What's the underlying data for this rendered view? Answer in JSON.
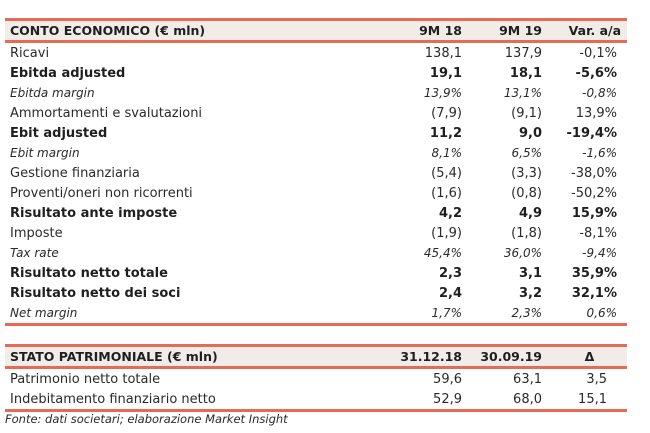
{
  "income": {
    "header": [
      "CONTO ECONOMICO (€ mln)",
      "9M 18",
      "9M 19",
      "Var. a/a"
    ],
    "rows": [
      {
        "label": "Ricavi",
        "v1": "138,1",
        "v2": "137,9",
        "v3": "-0,1%",
        "style": "normal"
      },
      {
        "label": "Ebitda adjusted",
        "v1": "19,1",
        "v2": "18,1",
        "v3": "-5,6%",
        "style": "bold"
      },
      {
        "label": "Ebitda margin",
        "v1": "13,9%",
        "v2": "13,1%",
        "v3": "-0,8%",
        "style": "italic"
      },
      {
        "label": "Ammortamenti e svalutazioni",
        "v1": "(7,9)",
        "v2": "(9,1)",
        "v3": "13,9%",
        "style": "normal"
      },
      {
        "label": "Ebit adjusted",
        "v1": "11,2",
        "v2": "9,0",
        "v3": "-19,4%",
        "style": "bold"
      },
      {
        "label": "Ebit margin",
        "v1": "8,1%",
        "v2": "6,5%",
        "v3": "-1,6%",
        "style": "italic"
      },
      {
        "label": "Gestione finanziaria",
        "v1": "(5,4)",
        "v2": "(3,3)",
        "v3": "-38,0%",
        "style": "normal"
      },
      {
        "label": "Proventi/oneri non ricorrenti",
        "v1": "(1,6)",
        "v2": "(0,8)",
        "v3": "-50,2%",
        "style": "normal"
      },
      {
        "label": "Risultato ante imposte",
        "v1": "4,2",
        "v2": "4,9",
        "v3": "15,9%",
        "style": "bold"
      },
      {
        "label": "Imposte",
        "v1": "(1,9)",
        "v2": "(1,8)",
        "v3": "-8,1%",
        "style": "normal"
      },
      {
        "label": "Tax rate",
        "v1": "45,4%",
        "v2": "36,0%",
        "v3": "-9,4%",
        "style": "italic"
      },
      {
        "label": "Risultato netto totale",
        "v1": "2,3",
        "v2": "3,1",
        "v3": "35,9%",
        "style": "bold"
      },
      {
        "label": "Risultato netto dei soci",
        "v1": "2,4",
        "v2": "3,2",
        "v3": "32,1%",
        "style": "bold"
      },
      {
        "label": "Net margin",
        "v1": "1,7%",
        "v2": "2,3%",
        "v3": "0,6%",
        "style": "italic"
      }
    ]
  },
  "balance": {
    "header": [
      "STATO PATRIMONIALE (€ mln)",
      "31.12.18",
      "30.09.19",
      "Δ"
    ],
    "rows": [
      {
        "label": "Patrimonio netto totale",
        "v1": "59,6",
        "v2": "63,1",
        "v3": "3,5",
        "style": "normal"
      },
      {
        "label": "Indebitamento finanziario netto",
        "v1": "52,9",
        "v2": "68,0",
        "v3": "15,1",
        "style": "normal"
      }
    ]
  },
  "source_note": "Fonte: dati societari; elaborazione Market Insight"
}
